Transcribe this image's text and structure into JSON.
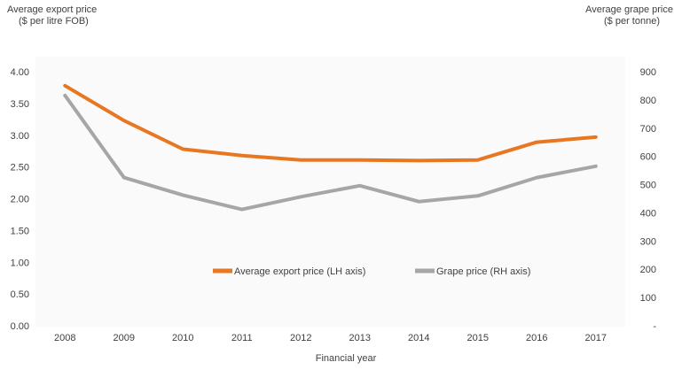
{
  "chart_data": {
    "type": "line",
    "categories": [
      "2008",
      "2009",
      "2010",
      "2011",
      "2012",
      "2013",
      "2014",
      "2015",
      "2016",
      "2017"
    ],
    "xlabel": "Financial year",
    "y_left": {
      "label_line1": "Average export price",
      "label_line2": "($ per litre FOB)",
      "ylim": [
        0,
        4
      ],
      "ticks": [
        0,
        0.5,
        1,
        1.5,
        2,
        2.5,
        3,
        3.5,
        4
      ],
      "tick_labels": [
        "0.00",
        "0.50",
        "1.00",
        "1.50",
        "2.00",
        "2.50",
        "3.00",
        "3.50",
        "4.00"
      ]
    },
    "y_right": {
      "label_line1": "Average grape price",
      "label_line2": "($ per tonne)",
      "ylim": [
        0,
        900
      ],
      "ticks": [
        0,
        100,
        200,
        300,
        400,
        500,
        600,
        700,
        800,
        900
      ],
      "tick_labels": [
        "-",
        "100",
        "200",
        "300",
        "400",
        "500",
        "600",
        "700",
        "800",
        "900"
      ]
    },
    "series": [
      {
        "name": "Average export price (LH axis)",
        "axis": "left",
        "color": "#E87722",
        "values": [
          3.78,
          3.23,
          2.78,
          2.68,
          2.61,
          2.61,
          2.6,
          2.61,
          2.89,
          2.97
        ]
      },
      {
        "name": "Grape price (RH axis)",
        "axis": "right",
        "color": "#A6A6A6",
        "values": [
          816,
          525,
          463,
          412,
          457,
          496,
          440,
          460,
          525,
          565
        ]
      }
    ],
    "legend_position": "inside-lower-center",
    "grid": false
  }
}
